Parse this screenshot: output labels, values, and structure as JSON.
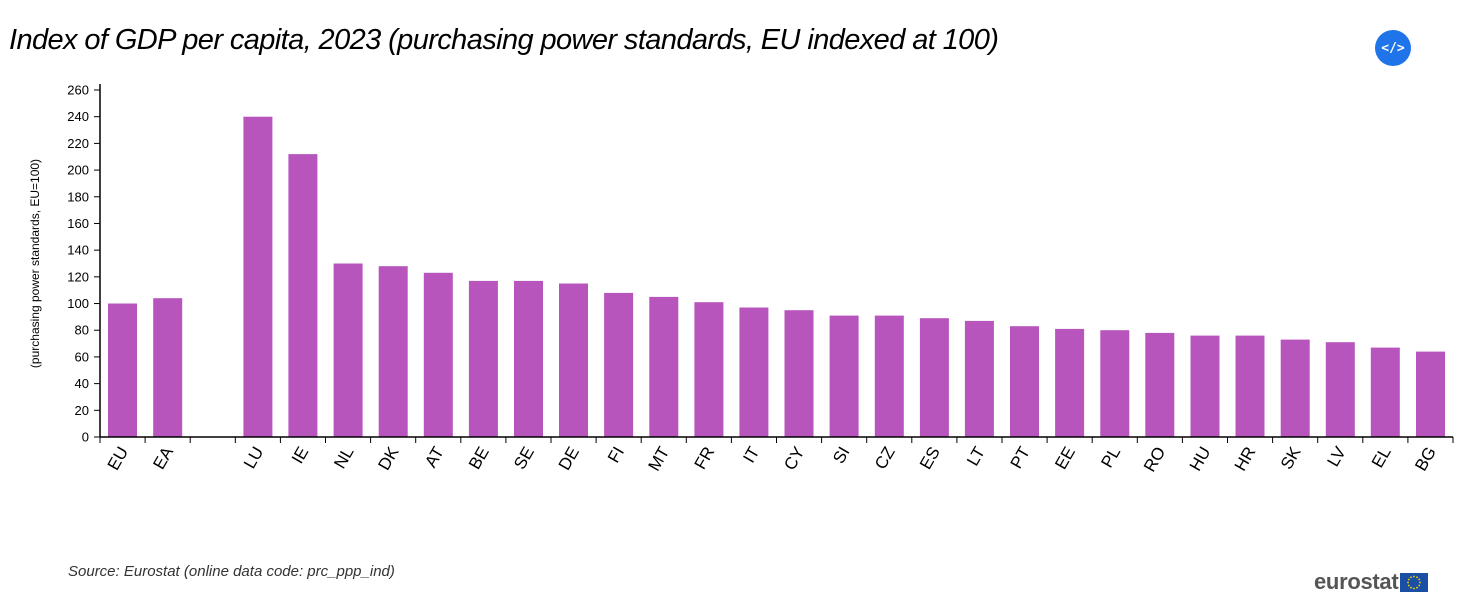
{
  "header": {
    "title": "Index of GDP per capita, 2023 (purchasing power standards, EU indexed at 100)"
  },
  "embed_button": {
    "label": "</>",
    "icon": "code-icon",
    "color": "#1e74e8"
  },
  "footer": {
    "source": "Source: Eurostat (online data code: prc_ppp_ind)",
    "logo_text": "eurostat"
  },
  "chart_data": {
    "type": "bar",
    "title": "Index of GDP per capita, 2023 (purchasing power standards, EU indexed at 100)",
    "xlabel": "",
    "ylabel": "(purchasing power standards, EU=100)",
    "ylim": [
      0,
      260
    ],
    "yticks": [
      0,
      20,
      40,
      60,
      80,
      100,
      120,
      140,
      160,
      180,
      200,
      220,
      240,
      260
    ],
    "grid": false,
    "bar_color": "#b755bd",
    "categories": [
      "EU",
      "EA",
      "",
      "LU",
      "IE",
      "NL",
      "DK",
      "AT",
      "BE",
      "SE",
      "DE",
      "FI",
      "MT",
      "FR",
      "IT",
      "CY",
      "SI",
      "CZ",
      "ES",
      "LT",
      "PT",
      "EE",
      "PL",
      "RO",
      "HU",
      "HR",
      "SK",
      "LV",
      "EL",
      "BG"
    ],
    "values": [
      100,
      104,
      null,
      240,
      212,
      130,
      128,
      123,
      117,
      117,
      115,
      108,
      105,
      101,
      97,
      95,
      91,
      91,
      89,
      87,
      83,
      81,
      80,
      78,
      76,
      76,
      73,
      71,
      67,
      64
    ]
  }
}
